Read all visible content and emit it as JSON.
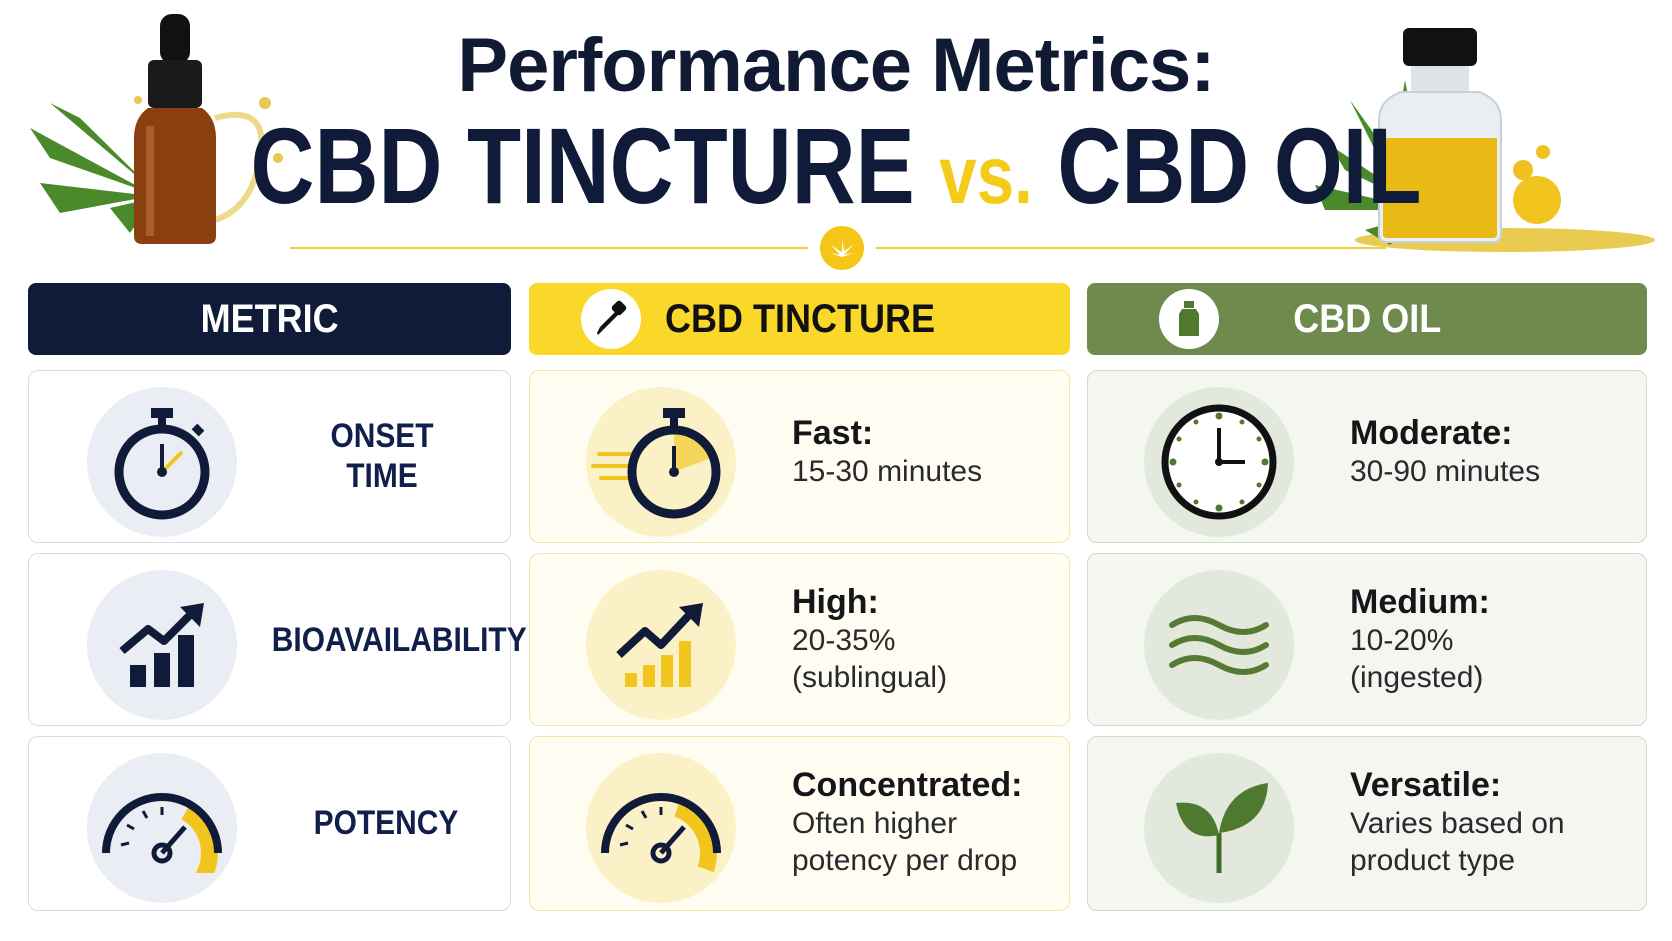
{
  "title": {
    "line1": "Performance Metrics:",
    "left": "CBD TINCTURE",
    "vs": "vs.",
    "right": "CBD OIL"
  },
  "headers": {
    "metric": "METRIC",
    "tincture": "CBD TINCTURE",
    "oil": "CBD OIL"
  },
  "rows": [
    {
      "metric": [
        "ONSET",
        "TIME"
      ],
      "tincture": {
        "key": "Fast:",
        "desc": [
          "15-30 minutes"
        ]
      },
      "oil": {
        "key": "Moderate:",
        "desc": [
          "30-90 minutes"
        ]
      }
    },
    {
      "metric": [
        "BIOAVAILABILITY"
      ],
      "tincture": {
        "key": "High:",
        "desc": [
          "20-35%",
          "(sublingual)"
        ]
      },
      "oil": {
        "key": "Medium:",
        "desc": [
          "10-20%",
          "(ingested)"
        ]
      }
    },
    {
      "metric": [
        "POTENCY"
      ],
      "tincture": {
        "key": "Concentrated:",
        "desc": [
          "Often higher",
          "potency per drop"
        ]
      },
      "oil": {
        "key": "Versatile:",
        "desc": [
          "Varies based on",
          "product type"
        ]
      }
    }
  ],
  "icons": {
    "header_tincture": "dropper-icon",
    "header_oil": "bottle-icon",
    "divider": "cannabis-leaf-icon",
    "row1_metric": "stopwatch-icon",
    "row1_tincture": "fast-stopwatch-icon",
    "row1_oil": "clock-icon",
    "row2_metric": "growth-chart-icon",
    "row2_tincture": "growth-chart-icon",
    "row2_oil": "waves-icon",
    "row3_metric": "gauge-icon",
    "row3_tincture": "gauge-icon",
    "row3_oil": "leaves-icon"
  },
  "colors": {
    "navy": "#0f1b38",
    "yellow": "#f5d42a",
    "green": "#6e8a4c"
  }
}
